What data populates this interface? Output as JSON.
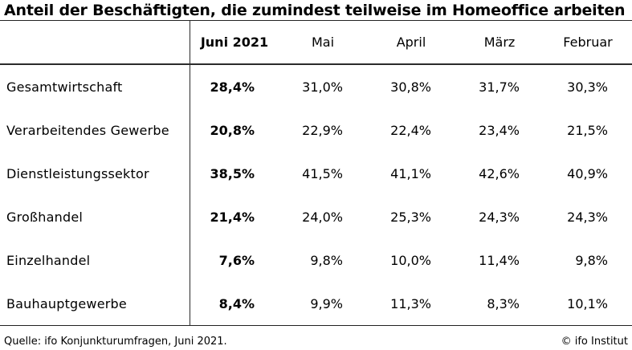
{
  "title": "Anteil der Beschäftigten, die zumindest teilweise im Homeoffice arbeiten",
  "table": {
    "columns": [
      "Juni 2021",
      "Mai",
      "April",
      "März",
      "Februar"
    ],
    "rows": [
      {
        "label": "Gesamtwirtschaft",
        "values": [
          "28,4%",
          "31,0%",
          "30,8%",
          "31,7%",
          "30,3%"
        ]
      },
      {
        "label": "Verarbeitendes Gewerbe",
        "values": [
          "20,8%",
          "22,9%",
          "22,4%",
          "23,4%",
          "21,5%"
        ]
      },
      {
        "label": "Dienstleistungssektor",
        "values": [
          "38,5%",
          "41,5%",
          "41,1%",
          "42,6%",
          "40,9%"
        ]
      },
      {
        "label": "Großhandel",
        "values": [
          "21,4%",
          "24,0%",
          "25,3%",
          "24,3%",
          "24,3%"
        ]
      },
      {
        "label": "Einzelhandel",
        "values": [
          "7,6%",
          "9,8%",
          "10,0%",
          "11,4%",
          "9,8%"
        ]
      },
      {
        "label": "Bauhauptgewerbe",
        "values": [
          "8,4%",
          "9,9%",
          "11,3%",
          "8,3%",
          "10,1%"
        ]
      }
    ]
  },
  "footer": {
    "source": "Quelle: ifo Konjunkturumfragen, Juni 2021.",
    "credit": "© ifo Institut"
  },
  "colors": {
    "text": "#000000",
    "rule": "#2b2b2b",
    "background": "#ffffff"
  },
  "chart_data": {
    "type": "table",
    "title": "Anteil der Beschäftigten, die zumindest teilweise im Homeoffice arbeiten",
    "columns": [
      "Juni 2021",
      "Mai",
      "April",
      "März",
      "Februar"
    ],
    "rows": [
      {
        "label": "Gesamtwirtschaft",
        "values_pct": [
          28.4,
          31.0,
          30.8,
          31.7,
          30.3
        ]
      },
      {
        "label": "Verarbeitendes Gewerbe",
        "values_pct": [
          20.8,
          22.9,
          22.4,
          23.4,
          21.5
        ]
      },
      {
        "label": "Dienstleistungssektor",
        "values_pct": [
          38.5,
          41.5,
          41.1,
          42.6,
          40.9
        ]
      },
      {
        "label": "Großhandel",
        "values_pct": [
          21.4,
          24.0,
          25.3,
          24.3,
          24.3
        ]
      },
      {
        "label": "Einzelhandel",
        "values_pct": [
          7.6,
          9.8,
          10.0,
          11.4,
          9.8
        ]
      },
      {
        "label": "Bauhauptgewerbe",
        "values_pct": [
          8.4,
          9.9,
          11.3,
          8.3,
          10.1
        ]
      }
    ],
    "highlighted_column": "Juni 2021",
    "unit": "%",
    "source": "Quelle: ifo Konjunkturumfragen, Juni 2021.",
    "credit": "© ifo Institut"
  }
}
